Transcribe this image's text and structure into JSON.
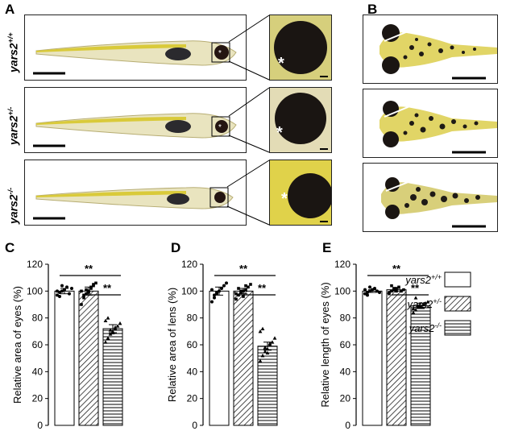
{
  "figure": {
    "panel_labels": [
      "A",
      "B",
      "C",
      "D",
      "E"
    ],
    "genotypes": [
      {
        "base": "yars2",
        "sup": "+/+"
      },
      {
        "base": "yars2",
        "sup": "+/-"
      },
      {
        "base": "yars2",
        "sup": "-/-"
      }
    ],
    "eye_marker": "*",
    "colors": {
      "fish_yellow": "#e0d24a",
      "eye": "#1a1512",
      "bar_edge": "#000000"
    }
  },
  "chart_data": [
    {
      "type": "bar",
      "panel": "C",
      "ylabel": "Relative area of eyes (%)",
      "ylim": [
        0,
        120
      ],
      "yticks": [
        "0",
        "20",
        "40",
        "60",
        "80",
        "100",
        "120"
      ],
      "categories": [
        "yars2+/+",
        "yars2+/-",
        "yars2-/-"
      ],
      "values": [
        100,
        100,
        72
      ],
      "errors": [
        2,
        3,
        3
      ],
      "points": [
        [
          97,
          99,
          100,
          101,
          103,
          98,
          102,
          100,
          96,
          104
        ],
        [
          90,
          95,
          98,
          100,
          102,
          104,
          106,
          100,
          97,
          101,
          99,
          103,
          105
        ],
        [
          62,
          65,
          68,
          70,
          72,
          74,
          76,
          78,
          80,
          71,
          69,
          73
        ]
      ],
      "significance": [
        {
          "pair": [
            0,
            2
          ],
          "label": "**"
        },
        {
          "pair": [
            1,
            2
          ],
          "label": "**"
        }
      ]
    },
    {
      "type": "bar",
      "panel": "D",
      "ylabel": "Relative area of lens (%)",
      "ylim": [
        0,
        120
      ],
      "yticks": [
        "0",
        "20",
        "40",
        "60",
        "80",
        "100",
        "120"
      ],
      "categories": [
        "yars2+/+",
        "yars2+/-",
        "yars2-/-"
      ],
      "values": [
        100,
        100,
        59
      ],
      "errors": [
        3,
        2,
        3
      ],
      "points": [
        [
          92,
          95,
          98,
          100,
          102,
          104,
          106,
          101,
          97,
          99
        ],
        [
          94,
          97,
          99,
          100,
          101,
          103,
          105,
          98,
          102,
          100,
          96,
          104
        ],
        [
          48,
          52,
          55,
          57,
          60,
          62,
          65,
          70,
          72,
          58,
          54,
          61
        ]
      ],
      "significance": [
        {
          "pair": [
            0,
            2
          ],
          "label": "**"
        },
        {
          "pair": [
            1,
            2
          ],
          "label": "**"
        }
      ]
    },
    {
      "type": "bar",
      "panel": "E",
      "ylabel": "Relative length of eyes (%)",
      "ylim": [
        0,
        120
      ],
      "yticks": [
        "0",
        "20",
        "40",
        "60",
        "80",
        "100",
        "120"
      ],
      "categories": [
        "yars2+/+",
        "yars2+/-",
        "yars2-/-"
      ],
      "values": [
        100,
        101,
        89
      ],
      "errors": [
        1,
        1,
        2
      ],
      "points": [
        [
          98,
          99,
          100,
          101,
          102,
          100,
          99,
          101,
          97,
          103
        ],
        [
          99,
          100,
          101,
          102,
          103,
          100,
          101,
          98,
          104,
          102,
          100
        ],
        [
          84,
          86,
          88,
          89,
          90,
          91,
          92,
          87,
          95,
          89,
          88
        ]
      ],
      "significance": [
        {
          "pair": [
            0,
            2
          ],
          "label": "**"
        },
        {
          "pair": [
            1,
            2
          ],
          "label": "**"
        }
      ]
    }
  ],
  "legend": {
    "entries": [
      {
        "base": "yars2",
        "sup": "+/+",
        "pattern": "white"
      },
      {
        "base": "yars2",
        "sup": "+/-",
        "pattern": "diagonal"
      },
      {
        "base": "yars2",
        "sup": "-/-",
        "pattern": "horizontal"
      }
    ]
  }
}
